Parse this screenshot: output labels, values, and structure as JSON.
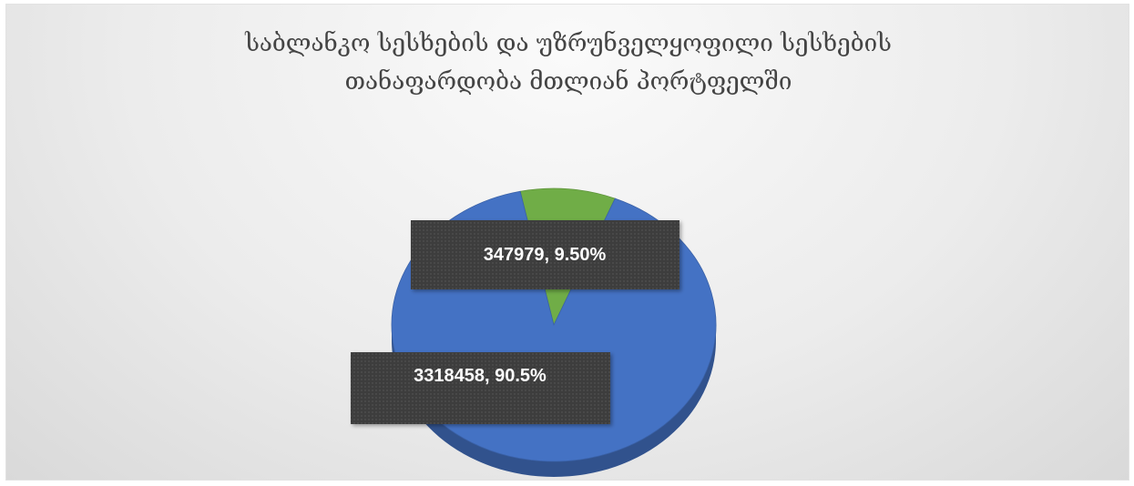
{
  "colors": {
    "accent": "#4472c4",
    "accent_dark": "#2f55a0",
    "green": "#70ad47",
    "label_bg": "#404040"
  },
  "chart_data": {
    "type": "pie",
    "title": "საბლანკო სესხების და უზრუნველყოფილი სესხების თანაფარდობა მთლიან პორტფელში",
    "title_lines": [
      "საბლანკო სესხების და უზრუნველყოფილი სესხების",
      "თანაფარდობა მთლიან პორტფელში"
    ],
    "slices": [
      {
        "value": 3318458,
        "percent": 90.5,
        "label": "3318458, 90.5%",
        "color": "#4472c4"
      },
      {
        "value": 347979,
        "percent": 9.5,
        "label": "347979, 9.50%",
        "color": "#70ad47"
      }
    ],
    "style": "3d",
    "legend": "none"
  }
}
